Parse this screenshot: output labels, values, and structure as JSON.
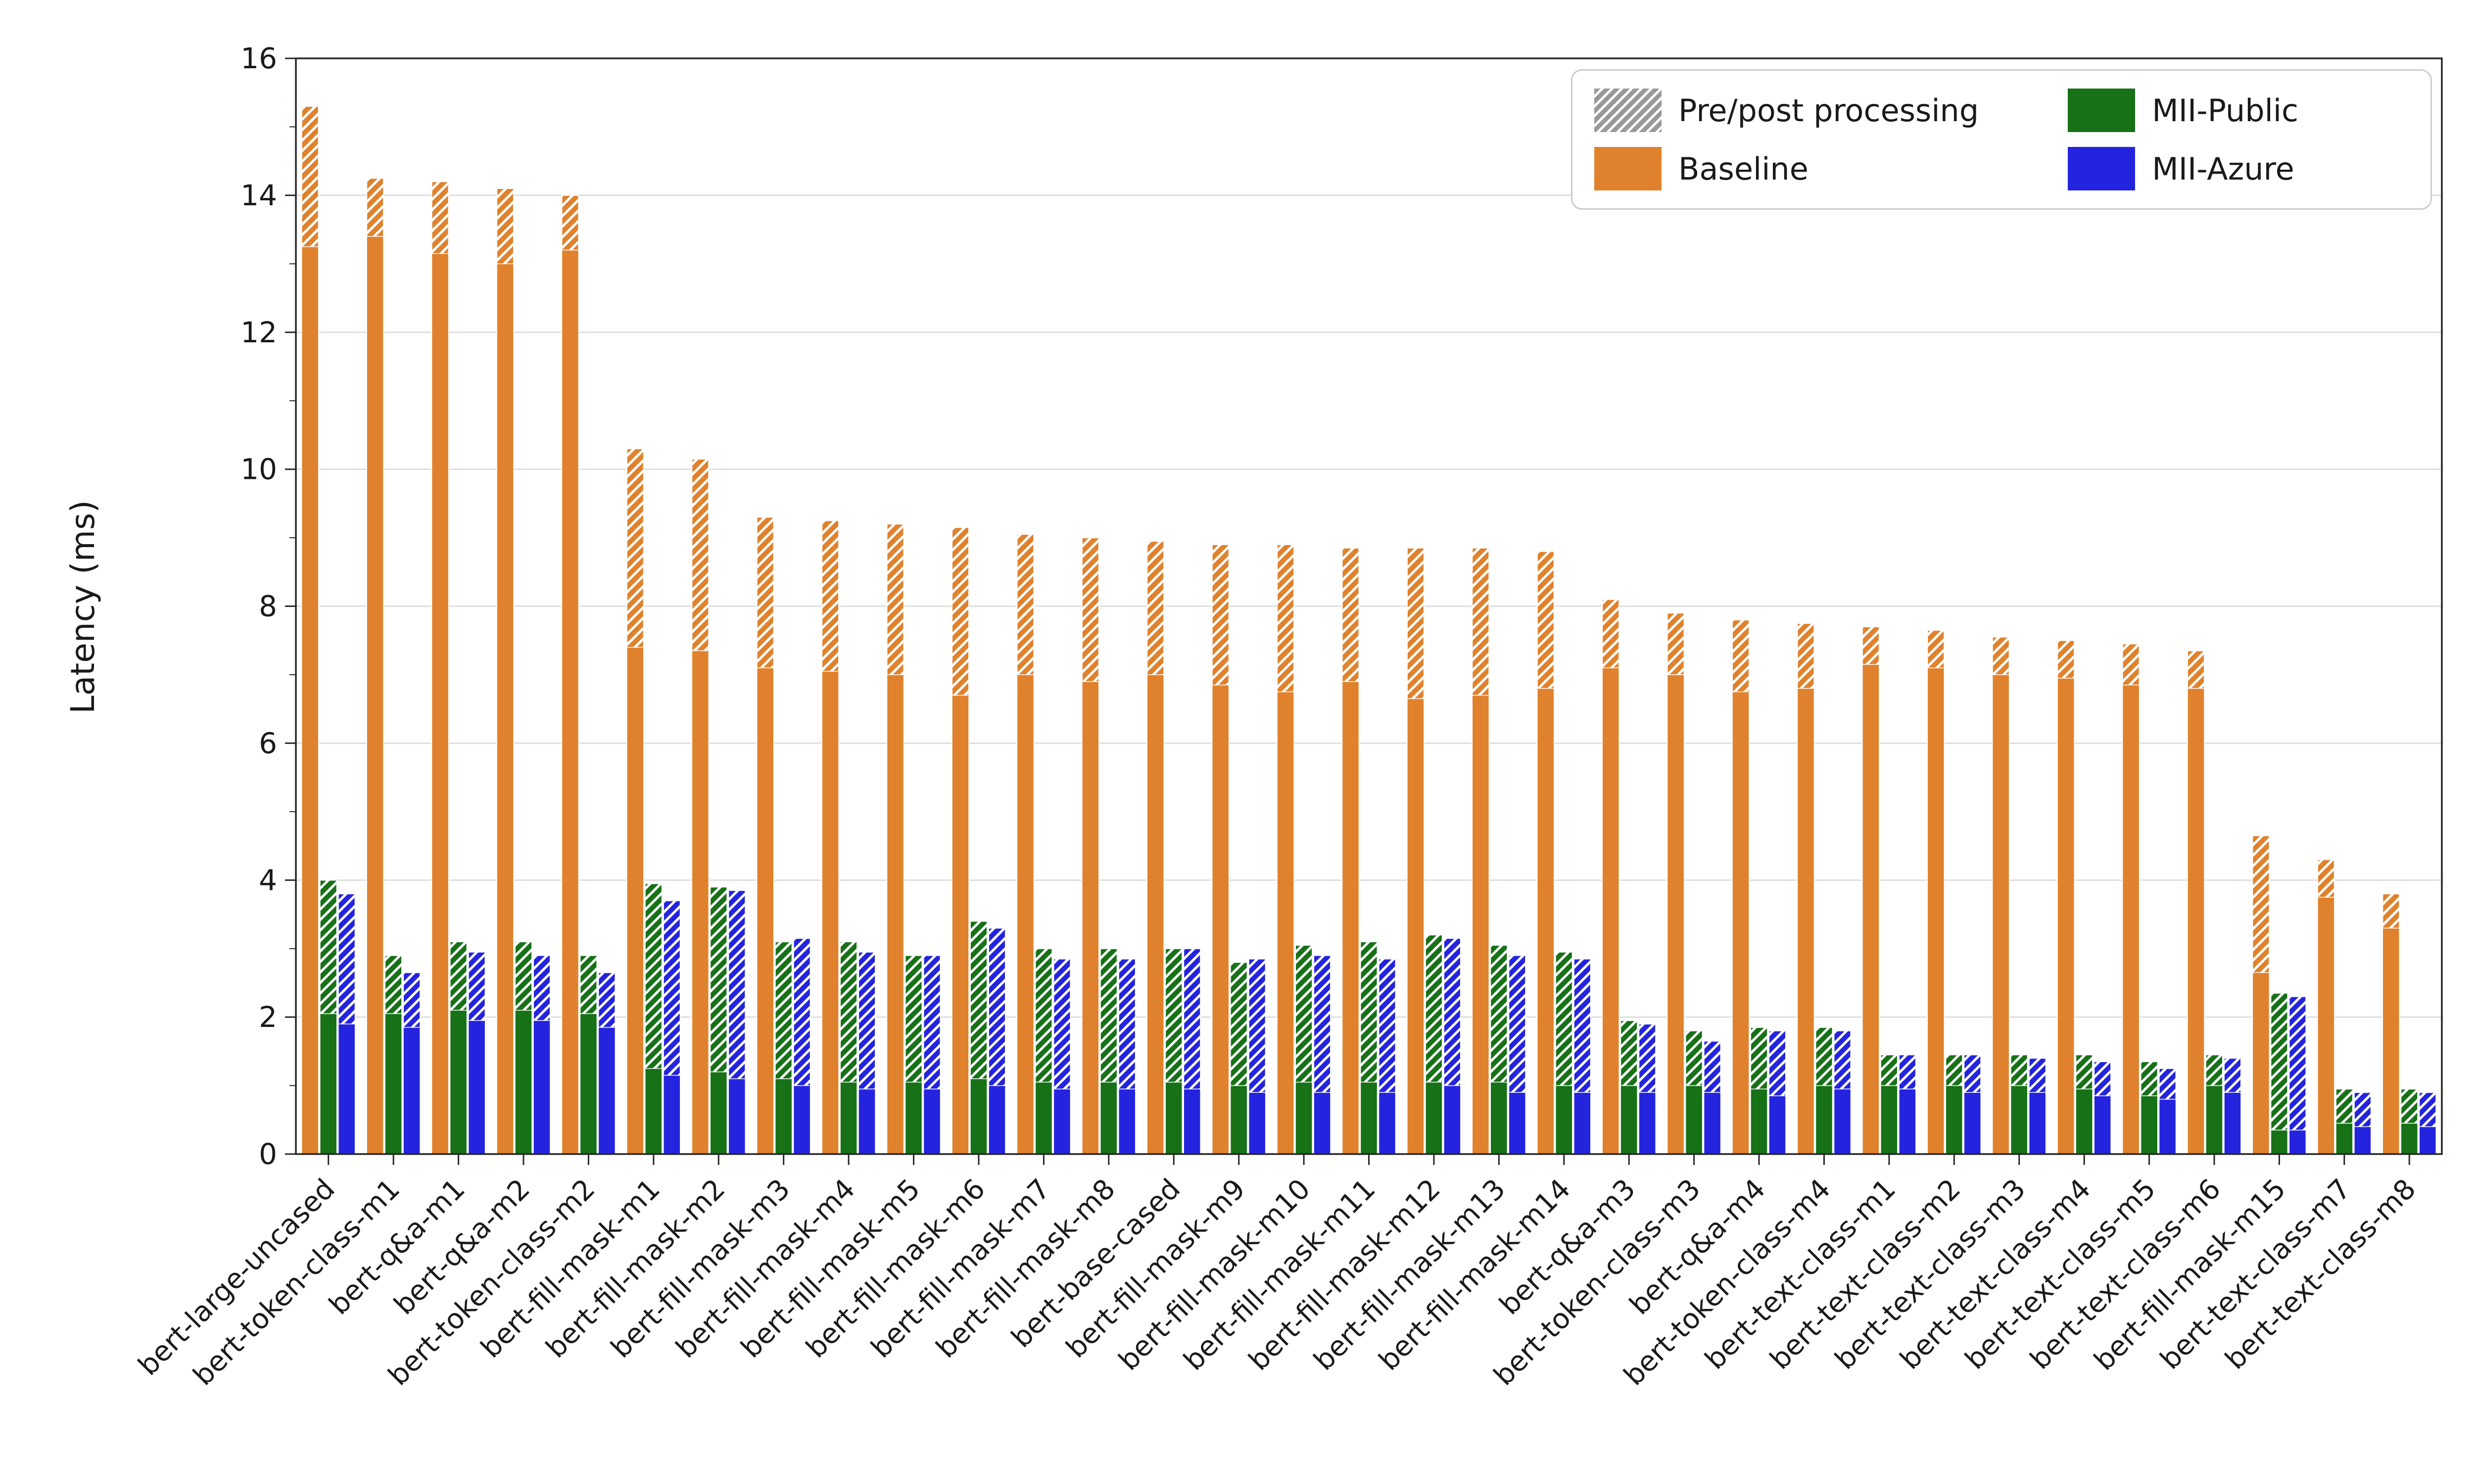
{
  "chart_data": {
    "type": "bar",
    "title": "",
    "xlabel": "",
    "ylabel": "Latency (ms)",
    "ylim": [
      0,
      16
    ],
    "yticks": [
      0,
      2,
      4,
      6,
      8,
      10,
      12,
      14,
      16
    ],
    "grid": "horizontal-major-lines",
    "x_tick_rotation": 45,
    "bar_style": "solid lower segment = model latency; hatched upper segment = pre/post processing overhead",
    "categories": [
      "bert-large-uncased",
      "bert-token-class-m1",
      "bert-q&a-m1",
      "bert-q&a-m2",
      "bert-token-class-m2",
      "bert-fill-mask-m1",
      "bert-fill-mask-m2",
      "bert-fill-mask-m3",
      "bert-fill-mask-m4",
      "bert-fill-mask-m5",
      "bert-fill-mask-m6",
      "bert-fill-mask-m7",
      "bert-fill-mask-m8",
      "bert-base-cased",
      "bert-fill-mask-m9",
      "bert-fill-mask-m10",
      "bert-fill-mask-m11",
      "bert-fill-mask-m12",
      "bert-fill-mask-m13",
      "bert-fill-mask-m14",
      "bert-q&a-m3",
      "bert-token-class-m3",
      "bert-q&a-m4",
      "bert-token-class-m4",
      "bert-text-class-m1",
      "bert-text-class-m2",
      "bert-text-class-m3",
      "bert-text-class-m4",
      "bert-text-class-m5",
      "bert-text-class-m6",
      "bert-fill-mask-m15",
      "bert-text-class-m7",
      "bert-text-class-m8"
    ],
    "series": [
      {
        "name": "Baseline",
        "color": "#E0822D",
        "solid": [
          13.25,
          13.4,
          13.15,
          13.0,
          13.2,
          7.4,
          7.35,
          7.1,
          7.05,
          7.0,
          6.7,
          7.0,
          6.9,
          7.0,
          6.85,
          6.75,
          6.9,
          6.65,
          6.7,
          6.8,
          7.1,
          7.0,
          6.75,
          6.8,
          7.15,
          7.1,
          7.0,
          6.95,
          6.85,
          6.8,
          2.65,
          3.75,
          3.3
        ],
        "total": [
          15.3,
          14.25,
          14.2,
          14.1,
          14.0,
          10.3,
          10.15,
          9.3,
          9.25,
          9.2,
          9.15,
          9.05,
          9.0,
          8.95,
          8.9,
          8.9,
          8.85,
          8.85,
          8.85,
          8.8,
          8.1,
          7.9,
          7.8,
          7.75,
          7.7,
          7.65,
          7.55,
          7.5,
          7.45,
          7.35,
          4.65,
          4.3,
          3.8
        ]
      },
      {
        "name": "MII-Public",
        "color": "#177117",
        "solid": [
          2.05,
          2.05,
          2.1,
          2.1,
          2.05,
          1.25,
          1.2,
          1.1,
          1.05,
          1.05,
          1.1,
          1.05,
          1.05,
          1.05,
          1.0,
          1.05,
          1.05,
          1.05,
          1.05,
          1.0,
          1.0,
          1.0,
          0.95,
          1.0,
          1.0,
          1.0,
          1.0,
          0.95,
          0.85,
          1.0,
          0.35,
          0.45,
          0.45
        ],
        "total": [
          4.0,
          2.9,
          3.1,
          3.1,
          2.9,
          3.95,
          3.9,
          3.1,
          3.1,
          2.9,
          3.4,
          3.0,
          3.0,
          3.0,
          2.8,
          3.05,
          3.1,
          3.2,
          3.05,
          2.95,
          1.95,
          1.8,
          1.85,
          1.85,
          1.45,
          1.45,
          1.45,
          1.45,
          1.35,
          1.45,
          2.35,
          0.95,
          0.95
        ]
      },
      {
        "name": "MII-Azure",
        "color": "#2424DE",
        "solid": [
          1.9,
          1.85,
          1.95,
          1.95,
          1.85,
          1.15,
          1.1,
          1.0,
          0.95,
          0.95,
          1.0,
          0.95,
          0.95,
          0.95,
          0.9,
          0.9,
          0.9,
          1.0,
          0.9,
          0.9,
          0.9,
          0.9,
          0.85,
          0.95,
          0.95,
          0.9,
          0.9,
          0.85,
          0.8,
          0.9,
          0.35,
          0.4,
          0.4
        ],
        "total": [
          3.8,
          2.65,
          2.95,
          2.9,
          2.65,
          3.7,
          3.85,
          3.15,
          2.95,
          2.9,
          3.3,
          2.85,
          2.85,
          3.0,
          2.85,
          2.9,
          2.85,
          3.15,
          2.9,
          2.85,
          1.9,
          1.65,
          1.8,
          1.8,
          1.45,
          1.45,
          1.4,
          1.35,
          1.25,
          1.4,
          2.3,
          0.9,
          0.9
        ]
      }
    ],
    "legend": {
      "position": "upper right",
      "columns": 2,
      "entries": [
        {
          "label": "Pre/post processing",
          "color": "#999999",
          "hatched": true
        },
        {
          "label": "Baseline",
          "color": "#E0822D",
          "hatched": false
        },
        {
          "label": "MII-Public",
          "color": "#177117",
          "hatched": false
        },
        {
          "label": "MII-Azure",
          "color": "#2424DE",
          "hatched": false
        }
      ]
    },
    "colors": {
      "grid": "#d9d9d9",
      "spine": "#262626",
      "text": "#1a1a1a",
      "hatch_stripe": "#ffffff"
    }
  }
}
